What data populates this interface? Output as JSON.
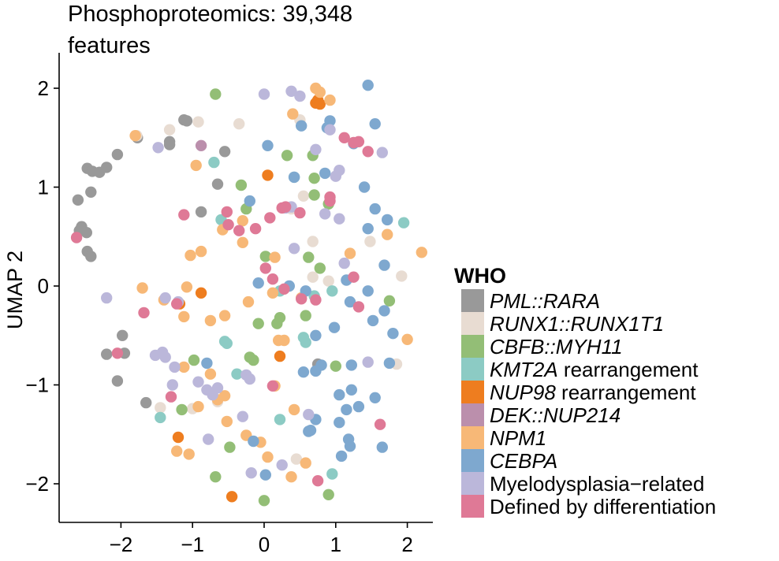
{
  "chart_data": {
    "type": "scatter",
    "title_lines": [
      "Phosphoproteomics: 39,348",
      "features"
    ],
    "xlabel": "",
    "ylabel": "UMAP 2",
    "xlim": [
      -2.85,
      2.4
    ],
    "ylim": [
      -2.38,
      2.38
    ],
    "x_ticks": [
      -2,
      -1,
      0,
      1,
      2
    ],
    "y_ticks": [
      -2,
      -1,
      0,
      1,
      2
    ],
    "x_tick_labels": [
      "−2",
      "−1",
      "0",
      "1",
      "2"
    ],
    "y_tick_labels": [
      "−2",
      "−1",
      "0",
      "1",
      "2"
    ],
    "grid": false,
    "legend": {
      "title": "WHO",
      "placement": "right",
      "entries": [
        {
          "key": "pml",
          "segments": [
            {
              "text": "PML::RARA",
              "italic": true
            }
          ],
          "color": "#999999"
        },
        {
          "key": "runx1",
          "segments": [
            {
              "text": "RUNX1::RUNX1T1",
              "italic": true
            }
          ],
          "color": "#e8dcd2"
        },
        {
          "key": "cbfb",
          "segments": [
            {
              "text": "CBFB::MYH11",
              "italic": true
            }
          ],
          "color": "#93be76"
        },
        {
          "key": "kmt2a",
          "segments": [
            {
              "text": "KMT2A",
              "italic": true
            },
            {
              "text": " rearrangement",
              "italic": false
            }
          ],
          "color": "#8ccbc4"
        },
        {
          "key": "nup98",
          "segments": [
            {
              "text": "NUP98",
              "italic": true
            },
            {
              "text": " rearrangement",
              "italic": false
            }
          ],
          "color": "#ee7d1f"
        },
        {
          "key": "dek",
          "segments": [
            {
              "text": "DEK::NUP214",
              "italic": true
            }
          ],
          "color": "#bb8fac"
        },
        {
          "key": "npm1",
          "segments": [
            {
              "text": "NPM1",
              "italic": true
            }
          ],
          "color": "#f7b877"
        },
        {
          "key": "cebpa",
          "segments": [
            {
              "text": "CEBPA",
              "italic": true
            }
          ],
          "color": "#7ea8cf"
        },
        {
          "key": "mds",
          "segments": [
            {
              "text": "Myelodysplasia−related",
              "italic": false
            }
          ],
          "color": "#bbb7da"
        },
        {
          "key": "diff",
          "segments": [
            {
              "text": "Defined by differentiation",
              "italic": false
            }
          ],
          "color": "#df7996"
        }
      ]
    },
    "series": [
      {
        "key": "pml",
        "points": [
          [
            -2.6,
            0.87
          ],
          [
            -2.55,
            0.6
          ],
          [
            -2.58,
            0.56
          ],
          [
            -2.48,
            0.54
          ],
          [
            -2.47,
            0.35
          ],
          [
            -2.42,
            0.3
          ],
          [
            -2.47,
            1.19
          ],
          [
            -2.4,
            1.16
          ],
          [
            -2.42,
            0.95
          ],
          [
            -2.3,
            1.15
          ],
          [
            -2.2,
            1.2
          ],
          [
            -2.05,
            1.33
          ],
          [
            -1.77,
            1.5
          ],
          [
            -1.32,
            1.46
          ],
          [
            -1.32,
            1.43
          ],
          [
            -1.12,
            1.68
          ],
          [
            -1.08,
            1.67
          ],
          [
            -0.55,
            1.36
          ],
          [
            -0.65,
            1.03
          ],
          [
            -0.88,
            0.75
          ],
          [
            -2.2,
            -0.69
          ],
          [
            -1.95,
            -0.68
          ],
          [
            -1.98,
            -0.5
          ],
          [
            -2.05,
            -0.96
          ],
          [
            -1.65,
            -1.18
          ],
          [
            0.75,
            -0.79
          ]
        ]
      },
      {
        "key": "runx1",
        "points": [
          [
            -1.32,
            1.58
          ],
          [
            -1.78,
            1.52
          ],
          [
            -0.92,
            1.66
          ],
          [
            -0.35,
            1.64
          ],
          [
            0.5,
            1.68
          ],
          [
            0.38,
            0.78
          ],
          [
            0.55,
            0.91
          ],
          [
            0.68,
            0.45
          ],
          [
            0.68,
            0.09
          ],
          [
            0.9,
            0.05
          ],
          [
            1.48,
            0.45
          ],
          [
            1.92,
            0.1
          ],
          [
            -0.65,
            -1.17
          ],
          [
            -1.45,
            -1.23
          ],
          [
            -1.0,
            -1.24
          ],
          [
            0.45,
            -1.75
          ],
          [
            1.85,
            -0.79
          ]
        ]
      },
      {
        "key": "cbfb",
        "points": [
          [
            -0.68,
            1.94
          ],
          [
            0.32,
            1.32
          ],
          [
            0.68,
            1.32
          ],
          [
            0.7,
            1.09
          ],
          [
            0.9,
            0.83
          ],
          [
            -0.32,
            1.02
          ],
          [
            -0.25,
            0.78
          ],
          [
            0.02,
            0.3
          ],
          [
            0.62,
            0.29
          ],
          [
            0.78,
            0.18
          ],
          [
            0.58,
            -0.3
          ],
          [
            -0.08,
            -0.38
          ],
          [
            0.18,
            -0.38
          ],
          [
            0.22,
            -0.32
          ],
          [
            -0.15,
            -0.75
          ],
          [
            -0.2,
            -0.72
          ],
          [
            -0.98,
            -0.75
          ],
          [
            1.0,
            -0.81
          ],
          [
            1.75,
            -0.15
          ],
          [
            -1.15,
            -1.25
          ],
          [
            -0.48,
            -1.63
          ],
          [
            -0.68,
            -1.93
          ],
          [
            0.0,
            -2.17
          ],
          [
            0.9,
            -2.11
          ],
          [
            0.7,
            0.92
          ]
        ]
      },
      {
        "key": "kmt2a",
        "points": [
          [
            -0.7,
            1.25
          ],
          [
            0.42,
            1.1
          ],
          [
            -0.6,
            0.67
          ],
          [
            0.22,
            -0.05
          ],
          [
            0.7,
            -0.1
          ],
          [
            0.95,
            -0.05
          ],
          [
            0.58,
            -0.57
          ],
          [
            0.55,
            -0.52
          ],
          [
            -0.52,
            -0.58
          ],
          [
            -0.55,
            -0.56
          ],
          [
            -0.38,
            -0.89
          ],
          [
            0.22,
            -1.35
          ],
          [
            0.95,
            -1.9
          ],
          [
            -1.45,
            -1.33
          ],
          [
            1.95,
            0.64
          ]
        ]
      },
      {
        "key": "nup98",
        "points": [
          [
            0.72,
            1.85
          ],
          [
            0.75,
            1.88
          ],
          [
            0.78,
            1.84
          ],
          [
            0.05,
            1.12
          ],
          [
            -1.18,
            -0.18
          ],
          [
            -0.88,
            -0.07
          ],
          [
            0.22,
            -0.71
          ],
          [
            -1.2,
            -1.53
          ],
          [
            -0.45,
            -2.13
          ]
        ]
      },
      {
        "key": "dek",
        "points": [
          [
            -0.88,
            1.42
          ]
        ]
      },
      {
        "key": "npm1",
        "points": [
          [
            -1.8,
            1.52
          ],
          [
            0.72,
            2.0
          ],
          [
            0.78,
            1.96
          ],
          [
            0.92,
            1.88
          ],
          [
            0.4,
            1.74
          ],
          [
            -0.95,
            1.22
          ],
          [
            -0.58,
            0.57
          ],
          [
            -0.3,
            0.44
          ],
          [
            -0.3,
            0.66
          ],
          [
            -1.03,
            0.31
          ],
          [
            -0.88,
            0.35
          ],
          [
            0.15,
            0.29
          ],
          [
            1.2,
            0.33
          ],
          [
            1.72,
            0.52
          ],
          [
            2.2,
            0.34
          ],
          [
            -1.7,
            -0.02
          ],
          [
            -1.08,
            -0.01
          ],
          [
            -1.4,
            -0.14
          ],
          [
            -1.12,
            -0.31
          ],
          [
            -0.75,
            -0.35
          ],
          [
            -0.55,
            -0.3
          ],
          [
            -0.22,
            -0.16
          ],
          [
            0.12,
            -0.07
          ],
          [
            0.52,
            -0.12
          ],
          [
            0.28,
            -0.55
          ],
          [
            -1.12,
            -0.82
          ],
          [
            -0.75,
            -0.89
          ],
          [
            0.15,
            -1.01
          ],
          [
            -0.65,
            -1.15
          ],
          [
            -0.55,
            -1.11
          ],
          [
            -0.92,
            -1.22
          ],
          [
            0.42,
            -1.25
          ],
          [
            -0.52,
            -1.37
          ],
          [
            -0.25,
            -1.51
          ],
          [
            -0.05,
            -1.58
          ],
          [
            -1.22,
            -1.67
          ],
          [
            -1.05,
            -1.7
          ],
          [
            0.05,
            -1.73
          ],
          [
            0.58,
            -1.79
          ],
          [
            0.38,
            -1.93
          ],
          [
            2.0,
            -0.54
          ],
          [
            0.2,
            -0.55
          ]
        ]
      },
      {
        "key": "cebpa",
        "points": [
          [
            1.45,
            2.03
          ],
          [
            1.55,
            1.64
          ],
          [
            0.52,
            1.62
          ],
          [
            0.92,
            1.67
          ],
          [
            0.88,
            1.6
          ],
          [
            0.05,
            1.42
          ],
          [
            1.25,
            1.44
          ],
          [
            0.42,
            1.1
          ],
          [
            0.85,
            1.14
          ],
          [
            1.4,
            1.0
          ],
          [
            -0.2,
            0.86
          ],
          [
            1.55,
            0.78
          ],
          [
            1.45,
            0.58
          ],
          [
            1.72,
            0.67
          ],
          [
            -0.08,
            0.03
          ],
          [
            0.35,
            0.0
          ],
          [
            1.15,
            0.06
          ],
          [
            1.68,
            0.21
          ],
          [
            1.45,
            -0.05
          ],
          [
            1.2,
            -0.16
          ],
          [
            0.58,
            -0.05
          ],
          [
            1.52,
            -0.35
          ],
          [
            1.68,
            -0.25
          ],
          [
            0.98,
            -0.42
          ],
          [
            0.72,
            -0.5
          ],
          [
            1.8,
            -0.48
          ],
          [
            -0.8,
            -0.78
          ],
          [
            0.8,
            -0.8
          ],
          [
            1.22,
            -0.8
          ],
          [
            0.55,
            -0.87
          ],
          [
            0.72,
            -0.86
          ],
          [
            1.75,
            -0.78
          ],
          [
            1.05,
            -1.1
          ],
          [
            1.22,
            -1.05
          ],
          [
            1.15,
            -1.25
          ],
          [
            1.32,
            -1.22
          ],
          [
            0.72,
            -1.35
          ],
          [
            0.65,
            -1.46
          ],
          [
            0.62,
            -1.47
          ],
          [
            1.05,
            -1.38
          ],
          [
            1.18,
            -1.55
          ],
          [
            1.2,
            -1.62
          ],
          [
            1.08,
            -1.72
          ],
          [
            -0.15,
            -1.57
          ],
          [
            0.02,
            -1.91
          ],
          [
            1.55,
            -1.13
          ],
          [
            1.65,
            -1.63
          ]
        ]
      },
      {
        "key": "mds",
        "points": [
          [
            0.0,
            1.94
          ],
          [
            0.38,
            1.97
          ],
          [
            0.5,
            1.92
          ],
          [
            0.92,
            1.58
          ],
          [
            -1.48,
            1.4
          ],
          [
            1.0,
            1.11
          ],
          [
            1.05,
            1.17
          ],
          [
            0.72,
            1.38
          ],
          [
            1.65,
            1.35
          ],
          [
            0.38,
            0.8
          ],
          [
            0.3,
            0.79
          ],
          [
            0.85,
            0.73
          ],
          [
            1.05,
            0.68
          ],
          [
            0.42,
            0.38
          ],
          [
            1.12,
            0.23
          ],
          [
            -2.2,
            -0.12
          ],
          [
            -1.38,
            -0.12
          ],
          [
            -1.2,
            -0.16
          ],
          [
            -1.42,
            -0.67
          ],
          [
            -1.25,
            -0.82
          ],
          [
            -1.38,
            -0.72
          ],
          [
            -1.28,
            -1.0
          ],
          [
            -0.92,
            -0.97
          ],
          [
            -0.65,
            -1.03
          ],
          [
            -0.72,
            -1.1
          ],
          [
            -0.8,
            -1.05
          ],
          [
            -0.25,
            -0.9
          ],
          [
            -0.2,
            -0.94
          ],
          [
            -0.3,
            -1.32
          ],
          [
            -0.78,
            -1.55
          ],
          [
            -1.52,
            -0.7
          ],
          [
            0.62,
            -1.3
          ],
          [
            1.45,
            -0.77
          ],
          [
            -0.18,
            -1.89
          ],
          [
            0.25,
            -1.81
          ]
        ]
      },
      {
        "key": "diff",
        "points": [
          [
            -2.62,
            0.49
          ],
          [
            -1.12,
            0.72
          ],
          [
            -0.5,
            0.62
          ],
          [
            -0.35,
            0.56
          ],
          [
            -0.12,
            0.58
          ],
          [
            0.08,
            0.69
          ],
          [
            -0.52,
            0.75
          ],
          [
            0.5,
            0.74
          ],
          [
            0.25,
            0.79
          ],
          [
            0.3,
            0.8
          ],
          [
            0.92,
            0.86
          ],
          [
            0.92,
            0.9
          ],
          [
            1.12,
            1.5
          ],
          [
            1.25,
            1.45
          ],
          [
            1.32,
            1.46
          ],
          [
            1.45,
            1.36
          ],
          [
            0.02,
            0.18
          ],
          [
            0.12,
            0.07
          ],
          [
            0.28,
            -0.03
          ],
          [
            1.25,
            0.09
          ],
          [
            0.52,
            -0.13
          ],
          [
            0.72,
            -0.14
          ],
          [
            1.32,
            -0.21
          ],
          [
            -1.68,
            -0.27
          ],
          [
            -1.22,
            -0.18
          ],
          [
            -2.05,
            -0.68
          ],
          [
            -1.3,
            -1.12
          ],
          [
            0.12,
            -1.01
          ],
          [
            0.75,
            -1.97
          ],
          [
            1.62,
            -1.4
          ]
        ]
      }
    ]
  }
}
